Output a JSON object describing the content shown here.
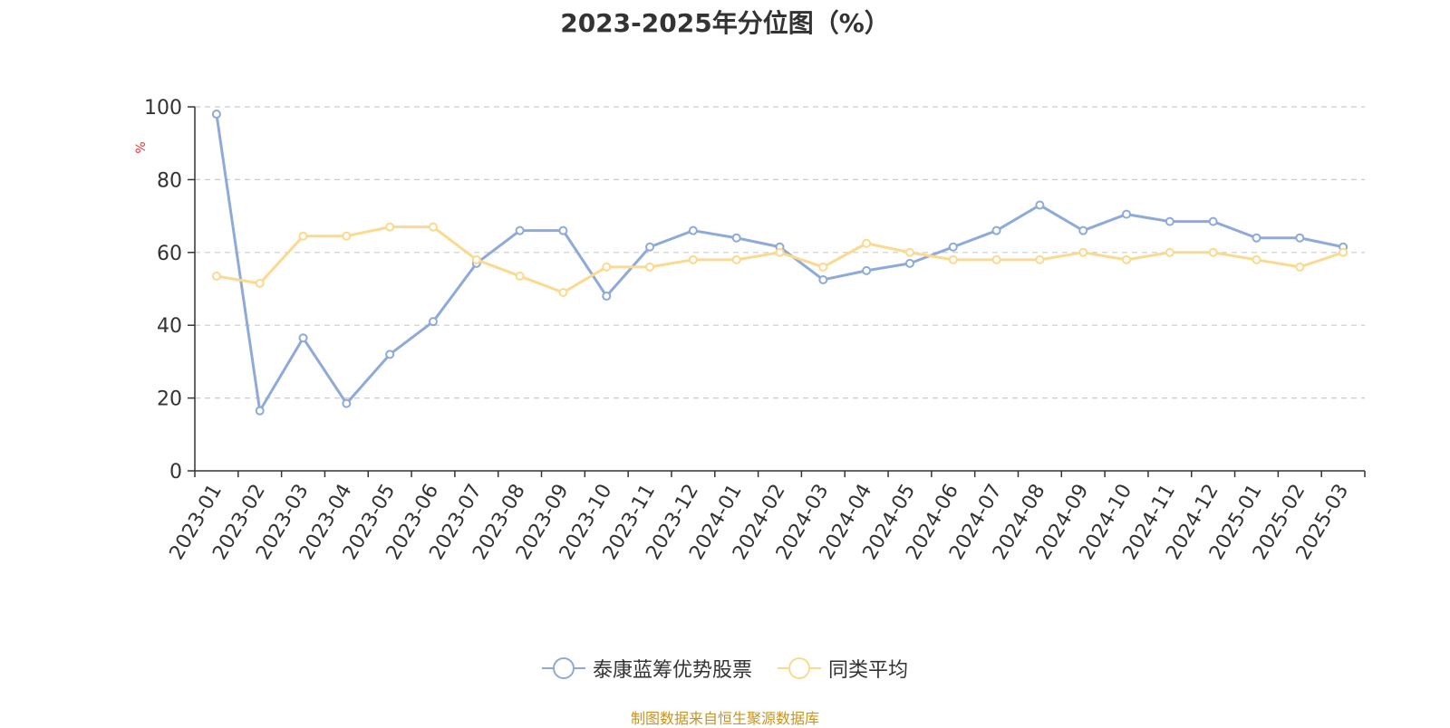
{
  "chart_data": {
    "type": "line",
    "title": "2023-2025年分位图（%）",
    "ylabel": "%",
    "xlabel": "",
    "ylim": [
      0,
      100
    ],
    "yticks": [
      0,
      20,
      40,
      60,
      80,
      100
    ],
    "grid": true,
    "legend_position": "bottom",
    "categories": [
      "2023-01",
      "2023-02",
      "2023-03",
      "2023-04",
      "2023-05",
      "2023-06",
      "2023-07",
      "2023-08",
      "2023-09",
      "2023-10",
      "2023-11",
      "2023-12",
      "2024-01",
      "2024-02",
      "2024-03",
      "2024-04",
      "2024-05",
      "2024-06",
      "2024-07",
      "2024-08",
      "2024-09",
      "2024-10",
      "2024-11",
      "2024-12",
      "2025-01",
      "2025-02",
      "2025-03"
    ],
    "series": [
      {
        "name": "泰康蓝筹优势股票",
        "color": "#8eaad9",
        "values": [
          98,
          16.5,
          36.5,
          18.5,
          32,
          41,
          57,
          66,
          66,
          48,
          61.5,
          66,
          64,
          61.5,
          52.5,
          55,
          57,
          61.5,
          66,
          73,
          66,
          70.5,
          68.5,
          68.5,
          64,
          64,
          61.5
        ]
      },
      {
        "name": "同类平均",
        "color": "#fbd98e",
        "values": [
          53.5,
          51.5,
          64.5,
          64.5,
          67,
          67,
          58,
          53.5,
          49,
          56,
          56,
          58,
          58,
          60,
          56,
          62.5,
          60,
          58,
          58,
          58,
          60,
          58,
          60,
          60,
          58,
          56,
          60
        ]
      }
    ],
    "source_note": "制图数据来自恒生聚源数据库"
  }
}
